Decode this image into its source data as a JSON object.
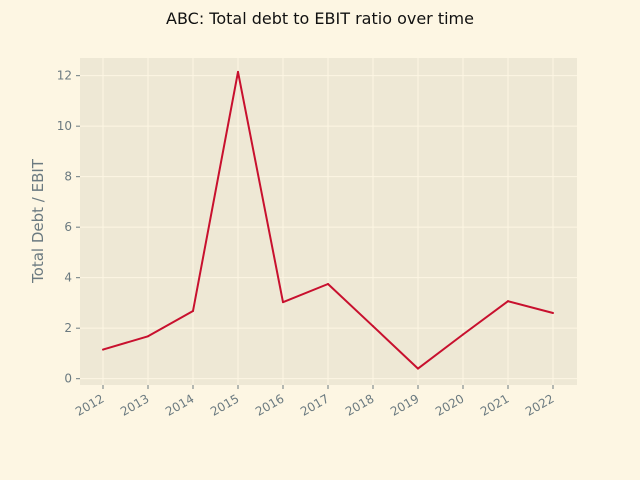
{
  "chart_data": {
    "type": "line",
    "title": "ABC: Total debt to EBIT ratio over time",
    "xlabel": "",
    "ylabel": "Total Debt / EBIT",
    "x": [
      "2012",
      "2013",
      "2014",
      "2015",
      "2016",
      "2017",
      "2018",
      "2019",
      "2020",
      "2021",
      "2022"
    ],
    "series": [
      {
        "values": [
          1.15,
          1.68,
          2.68,
          12.15,
          3.03,
          3.75,
          2.08,
          0.4,
          1.75,
          3.07,
          2.6
        ]
      }
    ],
    "ylim": [
      -0.25,
      12.7
    ],
    "yticks": [
      0,
      2,
      4,
      6,
      8,
      10,
      12
    ],
    "grid": true,
    "legend": "none",
    "colors": {
      "line": "#c8102e",
      "plot_background": "#eee8d5",
      "page_background": "#fdf6e3",
      "grid": "#fdf6e3",
      "text": "#6b7a80"
    }
  }
}
